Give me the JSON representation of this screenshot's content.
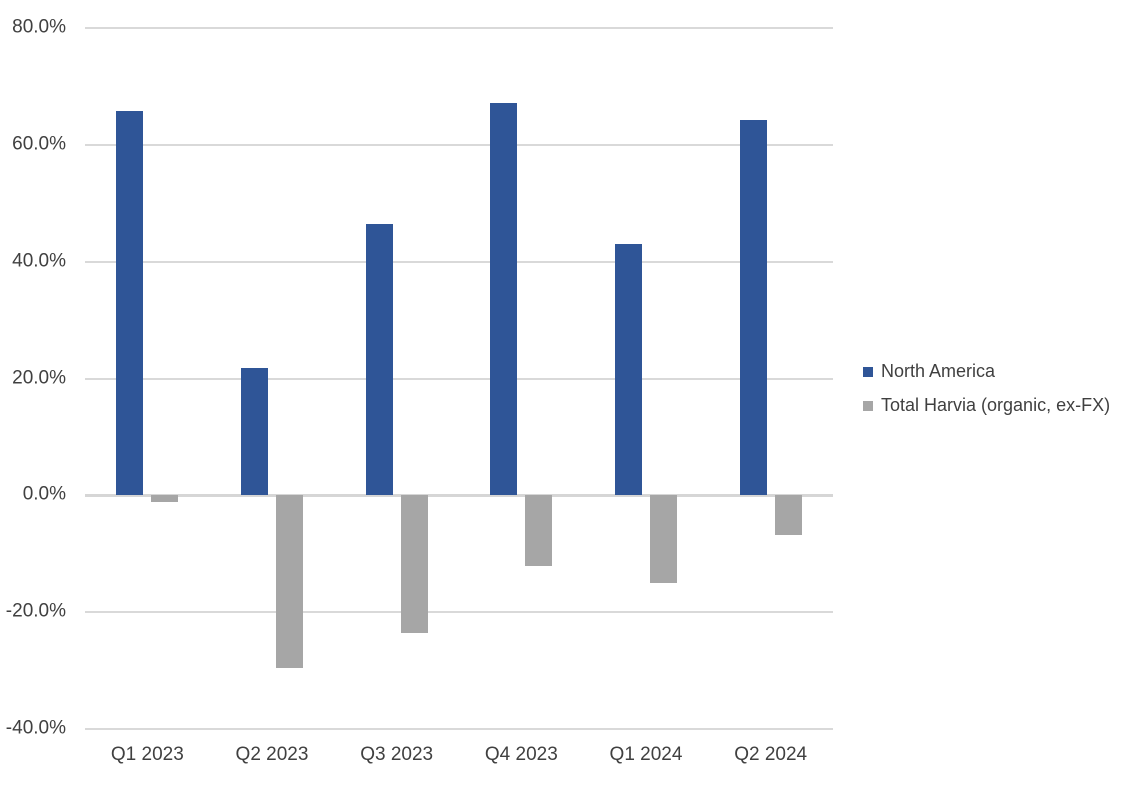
{
  "chart_data": {
    "type": "bar",
    "title": "",
    "xlabel": "",
    "ylabel": "",
    "categories": [
      "Q1 2023",
      "Q2 2023",
      "Q3 2023",
      "Q4 2023",
      "Q1 2024",
      "Q2 2024"
    ],
    "series": [
      {
        "name": "North America",
        "color": "#2F5597",
        "values": [
          65.8,
          21.8,
          46.4,
          67.2,
          43.1,
          64.2
        ]
      },
      {
        "name": "Total Harvia (organic, ex-FX)",
        "color": "#A6A6A6",
        "values": [
          -1.2,
          -29.5,
          -23.6,
          -12.1,
          -15.0,
          -6.8
        ]
      }
    ],
    "ylim": [
      -40,
      80
    ],
    "y_tick_interval": 20,
    "y_ticks": [
      "80.0%",
      "60.0%",
      "40.0%",
      "20.0%",
      "0.0%",
      "-20.0%",
      "-40.0%"
    ],
    "y_tick_values": [
      80,
      60,
      40,
      20,
      0,
      -20,
      -40
    ],
    "grid": true,
    "legend_position": "right",
    "value_format": "percent",
    "colors": {
      "gridline": "#D9D9D9",
      "zero_line": "#D6D6D6",
      "axis_label": "#404040",
      "legend_label": "#404040",
      "background": "#FFFFFF"
    }
  }
}
